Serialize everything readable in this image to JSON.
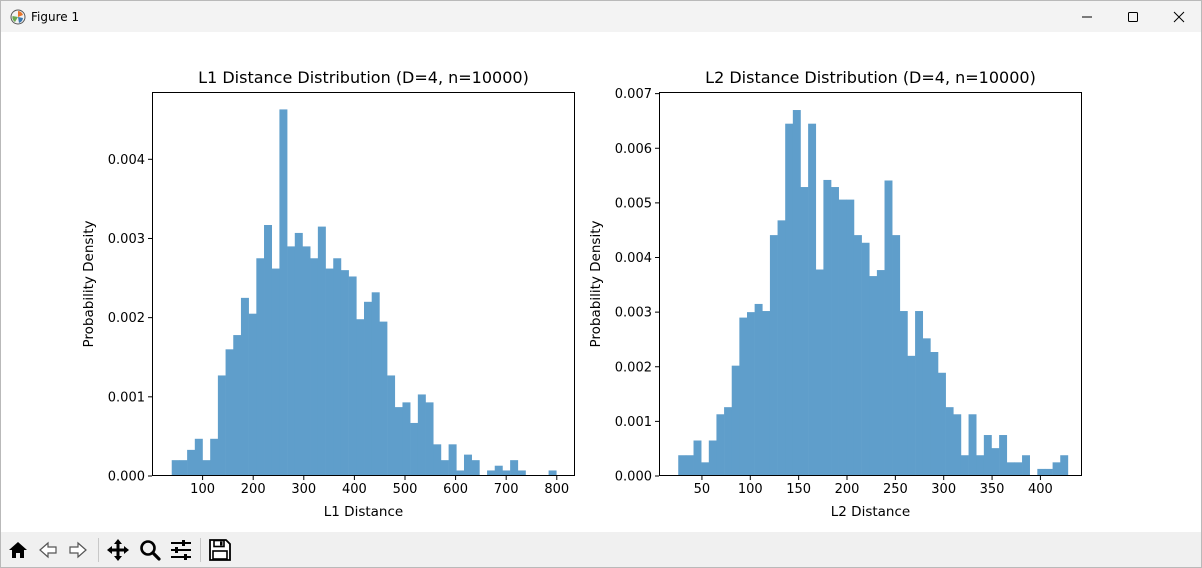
{
  "window": {
    "title": "Figure 1"
  },
  "toolbar": {
    "buttons": [
      {
        "name": "home-button",
        "icon": "home-icon"
      },
      {
        "name": "back-button",
        "icon": "back-arrow-icon"
      },
      {
        "name": "forward-button",
        "icon": "forward-arrow-icon"
      },
      {
        "name": "pan-button",
        "icon": "move-icon"
      },
      {
        "name": "zoom-button",
        "icon": "magnifier-icon"
      },
      {
        "name": "configure-subplots-button",
        "icon": "sliders-icon"
      },
      {
        "name": "save-button",
        "icon": "floppy-disk-icon"
      }
    ]
  },
  "chart_data": [
    {
      "type": "bar",
      "title": "L1 Distance Distribution (D=4, n=10000)",
      "xlabel": "L1 Distance",
      "ylabel": "Probability Density",
      "xlim": [
        0,
        836
      ],
      "ylim": [
        0,
        0.00485
      ],
      "xticks": [
        100,
        200,
        300,
        400,
        500,
        600,
        700,
        800
      ],
      "xtick_labels": [
        "100",
        "200",
        "300",
        "400",
        "500",
        "600",
        "700",
        "800"
      ],
      "yticks": [
        0,
        0.001,
        0.002,
        0.003,
        0.004
      ],
      "ytick_labels": [
        "0.000",
        "0.001",
        "0.002",
        "0.003",
        "0.004"
      ],
      "bin_start": 39,
      "bin_width": 15.2,
      "values": [
        0.0002,
        0.0002,
        0.00033,
        0.00047,
        0.0002,
        0.00047,
        0.00127,
        0.0016,
        0.00178,
        0.00225,
        0.00205,
        0.00275,
        0.00317,
        0.00262,
        0.00463,
        0.0029,
        0.00307,
        0.0029,
        0.00275,
        0.00315,
        0.00262,
        0.00275,
        0.0026,
        0.00252,
        0.00198,
        0.0022,
        0.00232,
        0.00195,
        0.00127,
        0.00087,
        0.00093,
        0.00067,
        0.00103,
        0.00093,
        0.0004,
        0.0002,
        0.0004,
        7e-05,
        0.00027,
        0.0002,
        0,
        7e-05,
        0.00013,
        7e-05,
        0.0002,
        7e-05,
        0,
        0,
        0,
        7e-05
      ],
      "color": "#5f9ecb",
      "grid": false
    },
    {
      "type": "bar",
      "title": "L2 Distance Distribution (D=4, n=10000)",
      "xlabel": "L2 Distance",
      "ylabel": "Probability Density",
      "xlim": [
        5.6,
        443
      ],
      "ylim": [
        0,
        0.00703
      ],
      "xticks": [
        50,
        100,
        150,
        200,
        250,
        300,
        350,
        400
      ],
      "xtick_labels": [
        "50",
        "100",
        "150",
        "200",
        "250",
        "300",
        "350",
        "400"
      ],
      "yticks": [
        0,
        0.001,
        0.002,
        0.003,
        0.004,
        0.005,
        0.006,
        0.007
      ],
      "ytick_labels": [
        "0.000",
        "0.001",
        "0.002",
        "0.003",
        "0.004",
        "0.005",
        "0.006",
        "0.007"
      ],
      "bin_start": 25.5,
      "bin_width": 7.9,
      "values": [
        0.00038,
        0.00038,
        0.00065,
        0.00025,
        0.00065,
        0.00113,
        0.00126,
        0.00202,
        0.0029,
        0.003,
        0.00315,
        0.00302,
        0.00441,
        0.00468,
        0.00645,
        0.0067,
        0.00529,
        0.00645,
        0.00378,
        0.00542,
        0.00529,
        0.00506,
        0.00506,
        0.00441,
        0.00427,
        0.00366,
        0.00377,
        0.00541,
        0.00441,
        0.00302,
        0.0022,
        0.00302,
        0.00252,
        0.00227,
        0.00189,
        0.00126,
        0.00113,
        0.00038,
        0.00113,
        0.00038,
        0.00075,
        0.00051,
        0.00075,
        0.00025,
        0.00025,
        0.00038,
        0,
        0.00013,
        0.00013,
        0.00025,
        0.00038
      ],
      "color": "#5f9ecb",
      "grid": false
    }
  ]
}
